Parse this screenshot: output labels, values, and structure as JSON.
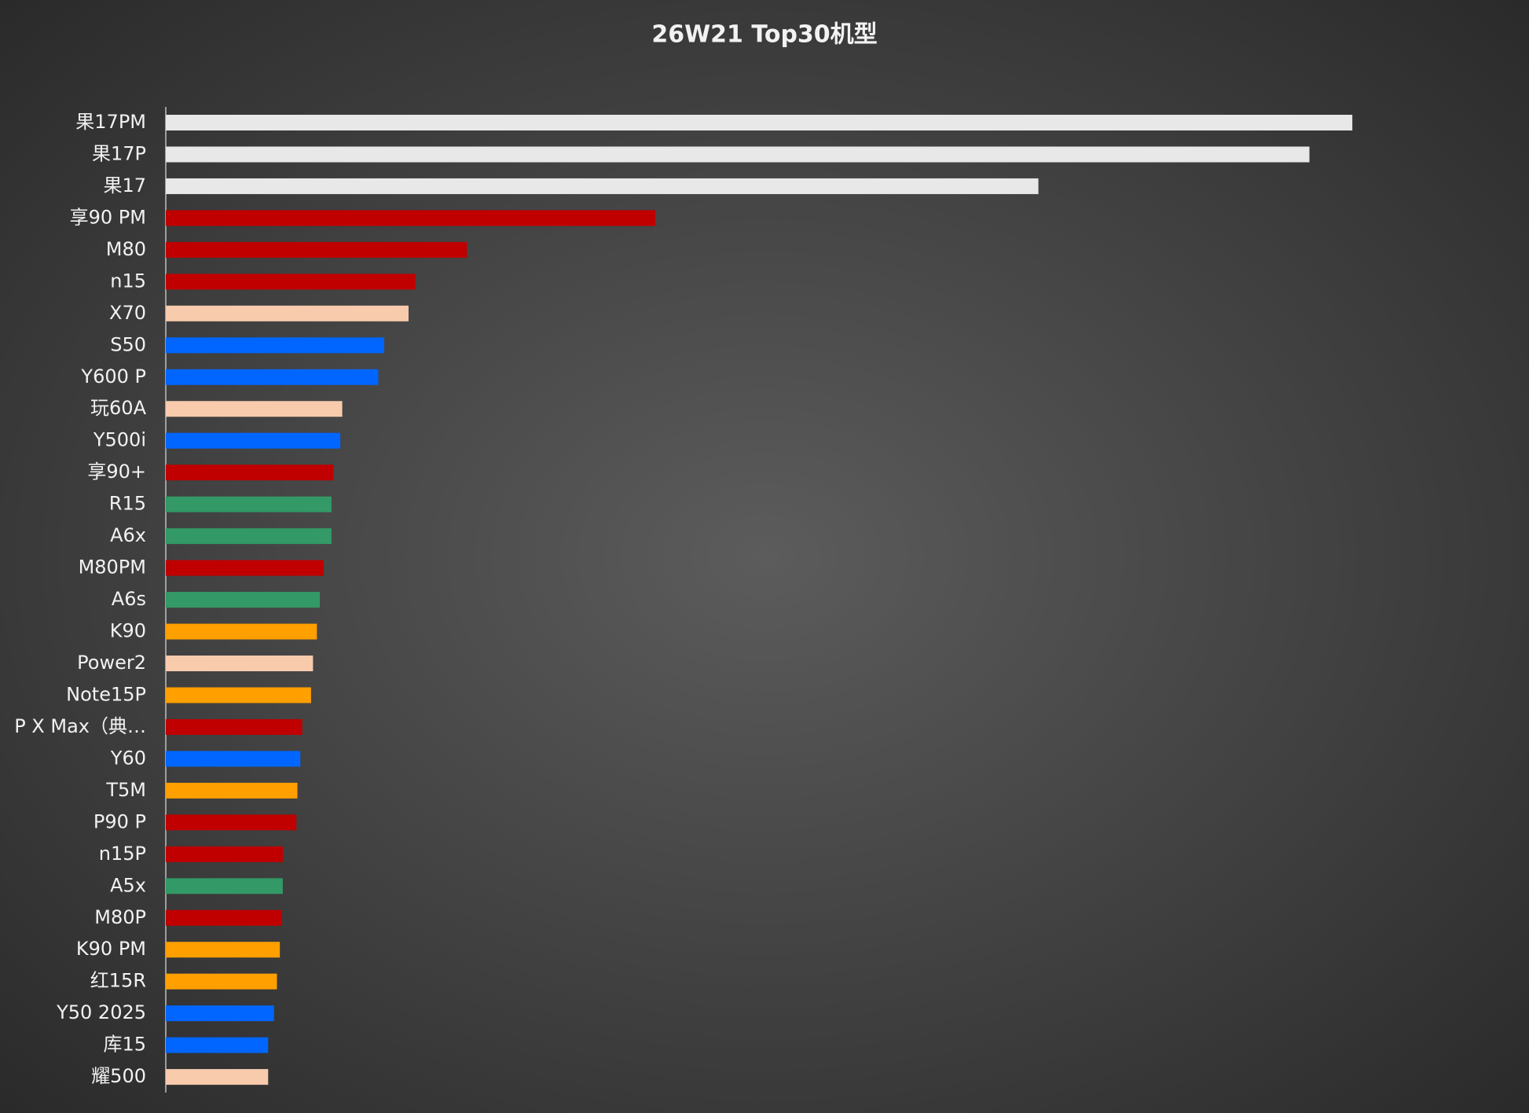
{
  "chart_data": {
    "type": "barh",
    "title": "26W21 Top30机型",
    "categories": [
      "果17PM",
      "果17P",
      "果17",
      "享90 PM",
      "M80",
      "n15",
      "X70",
      "S50",
      "Y600 P",
      "玩60A",
      "Y500i",
      "享90+",
      "R15",
      "A6x",
      "M80PM",
      "A6s",
      "K90",
      "Power2",
      "Note15P",
      "P X Max（典…",
      "Y60",
      "T5M",
      "P90 P",
      "n15P",
      "A5x",
      "M80P",
      "K90 PM",
      "红15R",
      "Y50 2025",
      "库15",
      "耀500"
    ],
    "values": [
      1217,
      1173,
      895,
      502,
      309,
      256,
      249,
      224,
      218,
      181,
      179,
      172,
      170,
      170,
      162,
      158,
      155,
      151,
      149,
      140,
      138,
      135,
      134,
      120,
      120,
      119,
      117,
      114,
      111,
      105,
      105
    ],
    "colors": [
      "#e8e8e8",
      "#e8e8e8",
      "#e8e8e8",
      "#c00000",
      "#c00000",
      "#c00000",
      "#f8cbad",
      "#0066ff",
      "#0066ff",
      "#f8cbad",
      "#0066ff",
      "#c00000",
      "#339966",
      "#339966",
      "#c00000",
      "#339966",
      "#ff9f00",
      "#f8cbad",
      "#ff9f00",
      "#c00000",
      "#0066ff",
      "#ff9f00",
      "#c00000",
      "#c00000",
      "#339966",
      "#c00000",
      "#ff9f00",
      "#ff9f00",
      "#0066ff",
      "#0066ff",
      "#f8cbad"
    ],
    "xlim": [
      0,
      1370
    ]
  }
}
